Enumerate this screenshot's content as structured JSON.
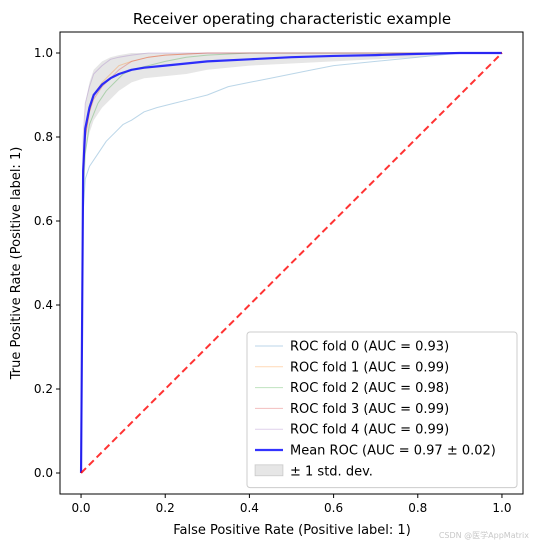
{
  "chart_data": {
    "type": "line",
    "title": "Receiver operating characteristic example",
    "xlabel": "False Positive Rate (Positive label: 1)",
    "ylabel": "True Positive Rate (Positive label: 1)",
    "xlim": [
      -0.05,
      1.05
    ],
    "ylim": [
      -0.05,
      1.05
    ],
    "xticks": [
      0.0,
      0.2,
      0.4,
      0.6,
      0.8,
      1.0
    ],
    "yticks": [
      0.0,
      0.2,
      0.4,
      0.6,
      0.8,
      1.0
    ],
    "xtick_labels": [
      "0.0",
      "0.2",
      "0.4",
      "0.6",
      "0.8",
      "1.0"
    ],
    "ytick_labels": [
      "0.0",
      "0.2",
      "0.4",
      "0.6",
      "0.8",
      "1.0"
    ],
    "grid": false,
    "legend_position": "lower-right",
    "series": [
      {
        "name": "ROC fold 0 (AUC = 0.93)",
        "color": "#1f77b4",
        "x": [
          0,
          0.005,
          0.01,
          0.02,
          0.04,
          0.06,
          0.08,
          0.1,
          0.12,
          0.15,
          0.18,
          0.22,
          0.26,
          0.3,
          0.35,
          0.4,
          0.45,
          0.5,
          0.55,
          0.6,
          0.7,
          0.8,
          0.9,
          1.0
        ],
        "y": [
          0,
          0.62,
          0.7,
          0.73,
          0.76,
          0.79,
          0.81,
          0.83,
          0.84,
          0.86,
          0.87,
          0.88,
          0.89,
          0.9,
          0.92,
          0.93,
          0.94,
          0.95,
          0.96,
          0.97,
          0.98,
          0.99,
          1.0,
          1.0
        ]
      },
      {
        "name": "ROC fold 1 (AUC = 0.99)",
        "color": "#ff7f0e",
        "x": [
          0,
          0.005,
          0.01,
          0.02,
          0.03,
          0.05,
          0.07,
          0.09,
          0.12,
          0.16,
          0.2,
          0.3,
          0.5,
          1.0
        ],
        "y": [
          0,
          0.7,
          0.8,
          0.86,
          0.9,
          0.93,
          0.95,
          0.97,
          0.98,
          0.99,
          0.995,
          1.0,
          1.0,
          1.0
        ]
      },
      {
        "name": "ROC fold 2 (AUC = 0.98)",
        "color": "#2ca02c",
        "x": [
          0,
          0.005,
          0.01,
          0.02,
          0.04,
          0.06,
          0.08,
          0.1,
          0.12,
          0.16,
          0.2,
          0.25,
          0.3,
          0.4,
          0.6,
          1.0
        ],
        "y": [
          0,
          0.65,
          0.76,
          0.83,
          0.88,
          0.91,
          0.93,
          0.95,
          0.96,
          0.97,
          0.98,
          0.99,
          0.995,
          1.0,
          1.0,
          1.0
        ]
      },
      {
        "name": "ROC fold 3 (AUC = 0.99)",
        "color": "#d62728",
        "x": [
          0,
          0.005,
          0.01,
          0.02,
          0.03,
          0.05,
          0.07,
          0.09,
          0.12,
          0.16,
          0.2,
          0.3,
          0.5,
          1.0
        ],
        "y": [
          0,
          0.72,
          0.8,
          0.86,
          0.89,
          0.92,
          0.94,
          0.96,
          0.98,
          0.99,
          0.995,
          1.0,
          1.0,
          1.0
        ]
      },
      {
        "name": "ROC fold 4 (AUC = 0.99)",
        "color": "#9467bd",
        "x": [
          0,
          0.005,
          0.01,
          0.02,
          0.03,
          0.05,
          0.07,
          0.09,
          0.12,
          0.16,
          0.2,
          0.3,
          1.0
        ],
        "y": [
          0,
          0.8,
          0.88,
          0.92,
          0.95,
          0.97,
          0.985,
          0.99,
          0.995,
          1.0,
          1.0,
          1.0,
          1.0
        ]
      },
      {
        "name": "Mean ROC (AUC = 0.97 ± 0.02)",
        "color": "#0000ff",
        "x": [
          0,
          0.005,
          0.01,
          0.02,
          0.03,
          0.05,
          0.07,
          0.09,
          0.12,
          0.15,
          0.2,
          0.25,
          0.3,
          0.4,
          0.5,
          0.6,
          0.7,
          0.8,
          0.9,
          1.0
        ],
        "y": [
          0,
          0.72,
          0.82,
          0.87,
          0.9,
          0.925,
          0.94,
          0.95,
          0.96,
          0.965,
          0.97,
          0.975,
          0.98,
          0.985,
          0.99,
          0.993,
          0.995,
          0.998,
          1.0,
          1.0
        ]
      }
    ],
    "band": {
      "name": "± 1 std. dev.",
      "color": "#808080",
      "x": [
        0,
        0.005,
        0.01,
        0.02,
        0.03,
        0.05,
        0.07,
        0.09,
        0.12,
        0.15,
        0.2,
        0.25,
        0.3,
        0.4,
        0.5,
        0.6,
        0.7,
        0.8,
        0.9,
        1.0
      ],
      "lower": [
        0,
        0.66,
        0.76,
        0.81,
        0.84,
        0.87,
        0.89,
        0.91,
        0.93,
        0.94,
        0.945,
        0.95,
        0.96,
        0.97,
        0.975,
        0.98,
        0.985,
        0.99,
        1.0,
        1.0
      ],
      "upper": [
        0,
        0.78,
        0.88,
        0.93,
        0.96,
        0.98,
        0.99,
        0.995,
        1.0,
        1.0,
        1.0,
        1.0,
        1.0,
        1.0,
        1.0,
        1.0,
        1.0,
        1.0,
        1.0,
        1.0
      ]
    },
    "reference_line": {
      "color": "#ff0000",
      "style": "dashed",
      "x": [
        0,
        1
      ],
      "y": [
        0,
        1
      ]
    }
  },
  "watermark": "CSDN @医学AppMatrix"
}
